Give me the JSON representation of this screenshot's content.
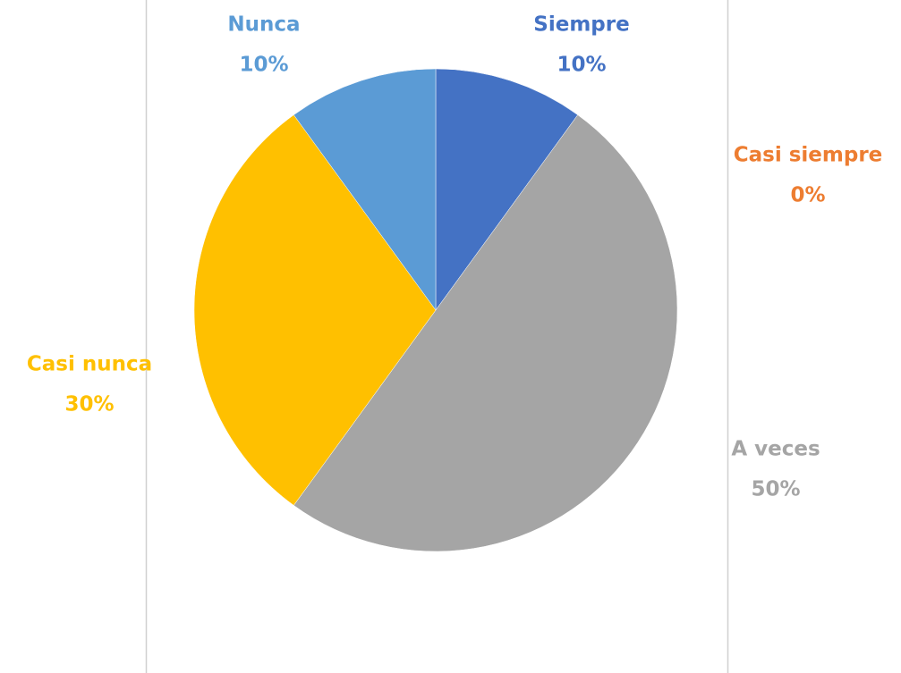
{
  "chart_data": {
    "type": "pie",
    "categories": [
      "Siempre",
      "Casi siempre",
      "A veces",
      "Casi nunca",
      "Nunca"
    ],
    "values": [
      10,
      0,
      50,
      30,
      10
    ],
    "value_labels": [
      "10%",
      "0%",
      "50%",
      "30%",
      "10%"
    ],
    "colors": [
      "#4472c4",
      "#ed7d31",
      "#a5a5a5",
      "#ffc000",
      "#5b9bd5"
    ]
  }
}
